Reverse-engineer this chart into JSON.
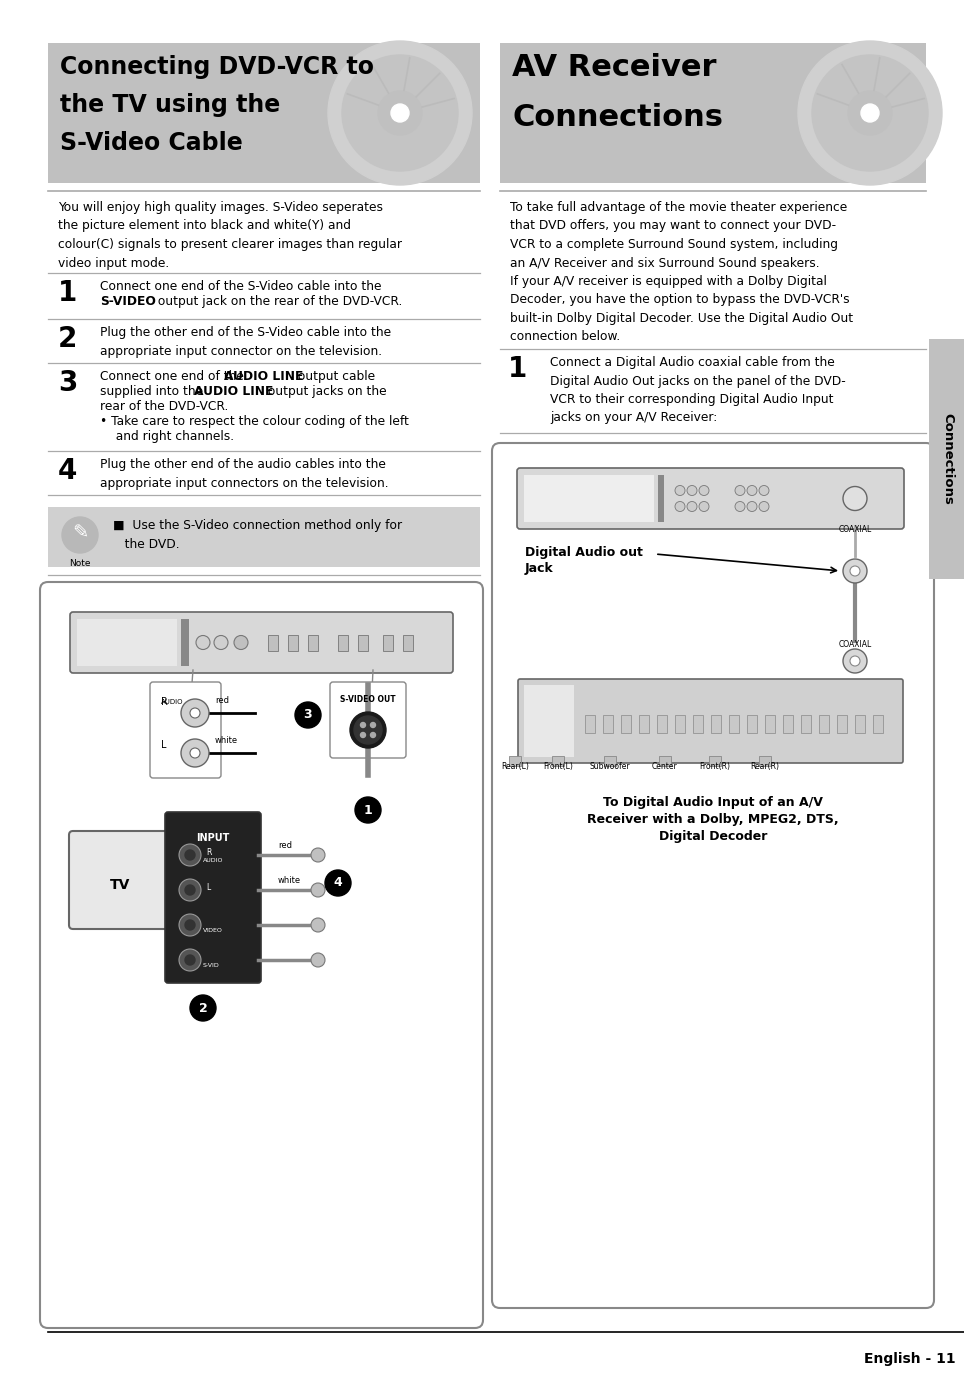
{
  "bg_color": "#ffffff",
  "header_bg": "#c0c0c0",
  "sidebar_color": "#c0c0c0",
  "separator_color": "#aaaaaa",
  "note_bg": "#d0d0d0",
  "left_title_lines": [
    "Connecting DVD-VCR to",
    "the TV using the",
    "S-Video Cable"
  ],
  "right_title_lines": [
    "AV Receiver",
    "Connections"
  ],
  "left_body": "You will enjoy high quality images. S-Video seperates\nthe picture element into black and white(Y) and\ncolour(C) signals to present clearer images than regular\nvideo input mode.",
  "right_body": "To take full advantage of the movie theater experience\nthat DVD offers, you may want to connect your DVD-\nVCR to a complete Surround Sound system, including\nan A/V Receiver and six Surround Sound speakers.\nIf your A/V receiver is equipped with a Dolby Digital\nDecoder, you have the option to bypass the DVD-VCR's\nbuilt-in Dolby Digital Decoder. Use the Digital Audio Out\nconnection below.",
  "right_step1": "Connect a Digital Audio coaxial cable from the\nDigital Audio Out jacks on the panel of the DVD-\nVCR to their corresponding Digital Audio Input\njacks on your A/V Receiver:",
  "note_text": "■  Use the S-Video connection method only for\n   the DVD.",
  "digital_audio_label_line1": "Digital Audio out",
  "digital_audio_label_line2": "Jack",
  "diagram_caption": "To Digital Audio Input of an A/V\nReceiver with a Dolby, MPEG2, DTS,\nDigital Decoder",
  "sidebar_text": "Connections",
  "page_num": "English - 11",
  "step1_a": "Connect one end of the S-Video cable into the",
  "step1_b": "S-VIDEO",
  "step1_c": " output jack on the rear of the DVD-VCR.",
  "step2": "Plug the other end of the S-Video cable into the\nappropriate input connector on the television.",
  "step3_a": "Connect one end of the ",
  "step3_b": "AUDIO LINE",
  "step3_c": " output cable",
  "step3_d": "supplied into the ",
  "step3_e": "AUDIO LINE",
  "step3_f": " output jacks on the",
  "step3_g": "rear of the DVD-VCR.",
  "step3_h": "• Take care to respect the colour coding of the left",
  "step3_i": "  and right channels.",
  "step4": "Plug the other end of the audio cables into the\nappropriate input connectors on the television."
}
